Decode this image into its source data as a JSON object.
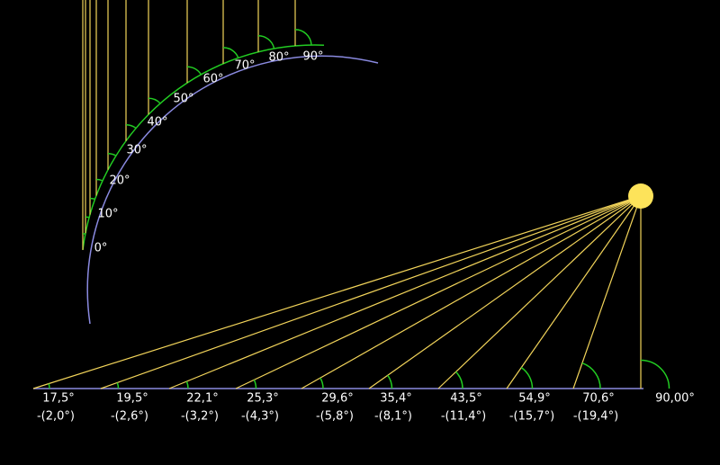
{
  "arc_labels": [
    "0°",
    "10°",
    "20°",
    "30°",
    "40°",
    "50°",
    "60°",
    "70°",
    "80°",
    "90°"
  ],
  "bottom_labels": [
    {
      "angle": "17,5°",
      "deviation": "-(2,0°)"
    },
    {
      "angle": "19,5°",
      "deviation": "-(2,6°)"
    },
    {
      "angle": "22,1°",
      "deviation": "-(3,2°)"
    },
    {
      "angle": "25,3°",
      "deviation": "-(4,3°)"
    },
    {
      "angle": "29,6°",
      "deviation": "-(5,8°)"
    },
    {
      "angle": "35,4°",
      "deviation": "-(8,1°)"
    },
    {
      "angle": "43,5°",
      "deviation": "-(11,4°)"
    },
    {
      "angle": "54,9°",
      "deviation": "-(15,7°)"
    },
    {
      "angle": "70,6°",
      "deviation": "-(19,4°)"
    },
    {
      "angle": "90,00°"
    }
  ]
}
